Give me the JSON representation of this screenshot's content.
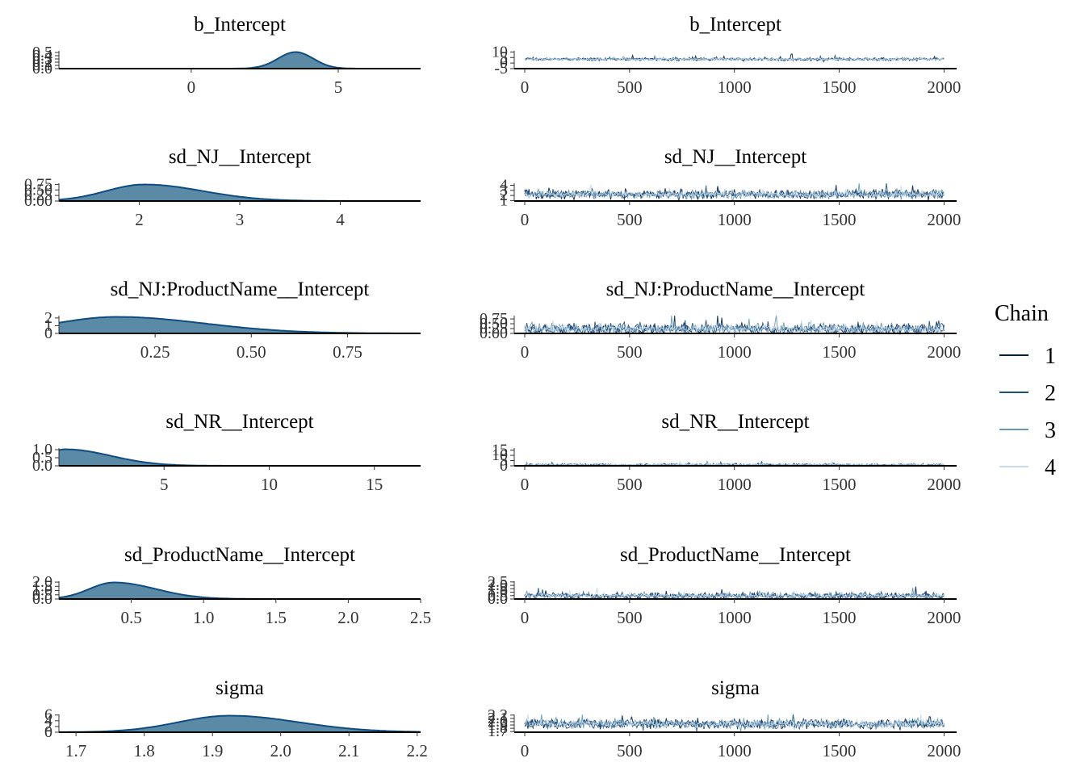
{
  "legend": {
    "title": "Chain",
    "entries": [
      {
        "label": "1",
        "color": "#011f4b"
      },
      {
        "label": "2",
        "color": "#1f4e79"
      },
      {
        "label": "3",
        "color": "#6497b1"
      },
      {
        "label": "4",
        "color": "#c6dbef"
      }
    ]
  },
  "colors": {
    "density_fill": "#5a8aa6",
    "density_line": "#0f4c81",
    "axis": "#000000"
  },
  "chart_data": [
    {
      "type": "area",
      "kind": "density",
      "title": "b_Intercept",
      "xlim": [
        -4.5,
        7.8
      ],
      "x_ticks": [
        "0",
        "5"
      ],
      "x_tick_values": [
        0,
        5
      ],
      "y_ticks": [
        "0.0",
        "0.1",
        "0.2",
        "0.3",
        "0.4",
        "0.5"
      ],
      "y_tick_values": [
        0,
        0.1,
        0.2,
        0.3,
        0.4,
        0.5
      ],
      "ylim": [
        0,
        0.55
      ],
      "mean": 3.55,
      "sd": 0.6
    },
    {
      "type": "line",
      "kind": "trace",
      "title": "b_Intercept",
      "xlim": [
        -50,
        2060
      ],
      "x_ticks": [
        "0",
        "500",
        "1000",
        "1500",
        "2000"
      ],
      "x_tick_values": [
        0,
        500,
        1000,
        1500,
        2000
      ],
      "y_ticks": [
        "-5",
        "0",
        "5",
        "10"
      ],
      "y_tick_values": [
        -5,
        0,
        5,
        10
      ],
      "ylim": [
        -5,
        11
      ],
      "center": 3.5,
      "spread": 0.6
    },
    {
      "type": "area",
      "kind": "density",
      "title": "sd_NJ__Intercept",
      "xlim": [
        1.2,
        4.8
      ],
      "x_ticks": [
        "2",
        "3",
        "4"
      ],
      "x_tick_values": [
        2,
        3,
        4
      ],
      "y_ticks": [
        "0.00",
        "0.25",
        "0.50",
        "0.75"
      ],
      "y_tick_values": [
        0,
        0.25,
        0.5,
        0.75
      ],
      "ylim": [
        0,
        0.8
      ],
      "mode": 2.05,
      "sd": 0.38,
      "skew": 1.5
    },
    {
      "type": "line",
      "kind": "trace",
      "title": "sd_NJ__Intercept",
      "xlim": [
        -50,
        2060
      ],
      "x_ticks": [
        "0",
        "500",
        "1000",
        "1500",
        "2000"
      ],
      "x_tick_values": [
        0,
        500,
        1000,
        1500,
        2000
      ],
      "y_ticks": [
        "1",
        "2",
        "3",
        "4"
      ],
      "y_tick_values": [
        1,
        2,
        3,
        4
      ],
      "ylim": [
        0.9,
        4.4
      ],
      "center": 2.2,
      "spread": 0.4
    },
    {
      "type": "area",
      "kind": "density",
      "title": "sd_NJ:ProductName__Intercept",
      "xlim": [
        0.0,
        0.94
      ],
      "x_ticks": [
        "0.25",
        "0.50",
        "0.75"
      ],
      "x_tick_values": [
        0.25,
        0.5,
        0.75
      ],
      "y_ticks": [
        "0",
        "1",
        "2"
      ],
      "y_tick_values": [
        0,
        1,
        2
      ],
      "ylim": [
        0,
        2.3
      ],
      "mode": 0.15,
      "sd": 0.16,
      "skew": 1.2
    },
    {
      "type": "line",
      "kind": "trace",
      "title": "sd_NJ:ProductName__Intercept",
      "xlim": [
        -50,
        2060
      ],
      "x_ticks": [
        "0",
        "500",
        "1000",
        "1500",
        "2000"
      ],
      "x_tick_values": [
        0,
        500,
        1000,
        1500,
        2000
      ],
      "y_ticks": [
        "0.00",
        "0.25",
        "0.50",
        "0.75"
      ],
      "y_tick_values": [
        0,
        0.25,
        0.5,
        0.75
      ],
      "ylim": [
        0,
        0.92
      ],
      "center": 0.22,
      "spread": 0.14
    },
    {
      "type": "area",
      "kind": "density",
      "title": "sd_NR__Intercept",
      "xlim": [
        0.0,
        17.2
      ],
      "x_ticks": [
        "5",
        "10",
        "15"
      ],
      "x_tick_values": [
        5,
        10,
        15
      ],
      "y_ticks": [
        "0.0",
        "0.5",
        "1.0"
      ],
      "y_tick_values": [
        0,
        0.5,
        1.0
      ],
      "ylim": [
        0,
        1.1
      ],
      "mode": 0.3,
      "sd": 0.9,
      "skew": 4
    },
    {
      "type": "line",
      "kind": "trace",
      "title": "sd_NR__Intercept",
      "xlim": [
        -50,
        2060
      ],
      "x_ticks": [
        "0",
        "500",
        "1000",
        "1500",
        "2000"
      ],
      "x_tick_values": [
        0,
        500,
        1000,
        1500,
        2000
      ],
      "y_ticks": [
        "0",
        "5",
        "10",
        "15"
      ],
      "y_tick_values": [
        0,
        5,
        10,
        15
      ],
      "ylim": [
        0,
        17
      ],
      "center": 0.8,
      "spread": 0.6
    },
    {
      "type": "area",
      "kind": "density",
      "title": "sd_ProductName__Intercept",
      "xlim": [
        0.0,
        2.5
      ],
      "x_ticks": [
        "0.5",
        "1.0",
        "1.5",
        "2.0",
        "2.5"
      ],
      "x_tick_values": [
        0.5,
        1.0,
        1.5,
        2.0,
        2.5
      ],
      "y_ticks": [
        "0.0",
        "0.5",
        "1.0",
        "1.5",
        "2.0"
      ],
      "y_tick_values": [
        0,
        0.5,
        1.0,
        1.5,
        2.0
      ],
      "ylim": [
        0,
        2.1
      ],
      "mode": 0.38,
      "sd": 0.17,
      "skew": 2
    },
    {
      "type": "line",
      "kind": "trace",
      "title": "sd_ProductName__Intercept",
      "xlim": [
        -50,
        2060
      ],
      "x_ticks": [
        "0",
        "500",
        "1000",
        "1500",
        "2000"
      ],
      "x_tick_values": [
        0,
        500,
        1000,
        1500,
        2000
      ],
      "y_ticks": [
        "0.0",
        "0.5",
        "1.0",
        "1.5",
        "2.0",
        "2.5"
      ],
      "y_tick_values": [
        0,
        0.5,
        1.0,
        1.5,
        2.0,
        2.5
      ],
      "ylim": [
        0,
        2.6
      ],
      "center": 0.45,
      "spread": 0.22
    },
    {
      "type": "area",
      "kind": "density",
      "title": "sigma",
      "xlim": [
        1.675,
        2.205
      ],
      "x_ticks": [
        "1.7",
        "1.8",
        "1.9",
        "2.0",
        "2.1",
        "2.2"
      ],
      "x_tick_values": [
        1.7,
        1.8,
        1.9,
        2.0,
        2.1,
        2.2
      ],
      "y_ticks": [
        "0",
        "2",
        "4",
        "6"
      ],
      "y_tick_values": [
        0,
        2,
        4,
        6
      ],
      "ylim": [
        0,
        6.2
      ],
      "mode": 1.925,
      "sd": 0.075,
      "skew": 1.0
    },
    {
      "type": "line",
      "kind": "trace",
      "title": "sigma",
      "xlim": [
        -50,
        2060
      ],
      "x_ticks": [
        "0",
        "500",
        "1000",
        "1500",
        "2000"
      ],
      "x_tick_values": [
        0,
        500,
        1000,
        1500,
        2000
      ],
      "y_ticks": [
        "1.7",
        "1.8",
        "1.9",
        "2.0",
        "2.1",
        "2.2"
      ],
      "y_tick_values": [
        1.7,
        1.8,
        1.9,
        2.0,
        2.1,
        2.2
      ],
      "ylim": [
        1.68,
        2.22
      ],
      "center": 1.93,
      "spread": 0.07
    }
  ]
}
